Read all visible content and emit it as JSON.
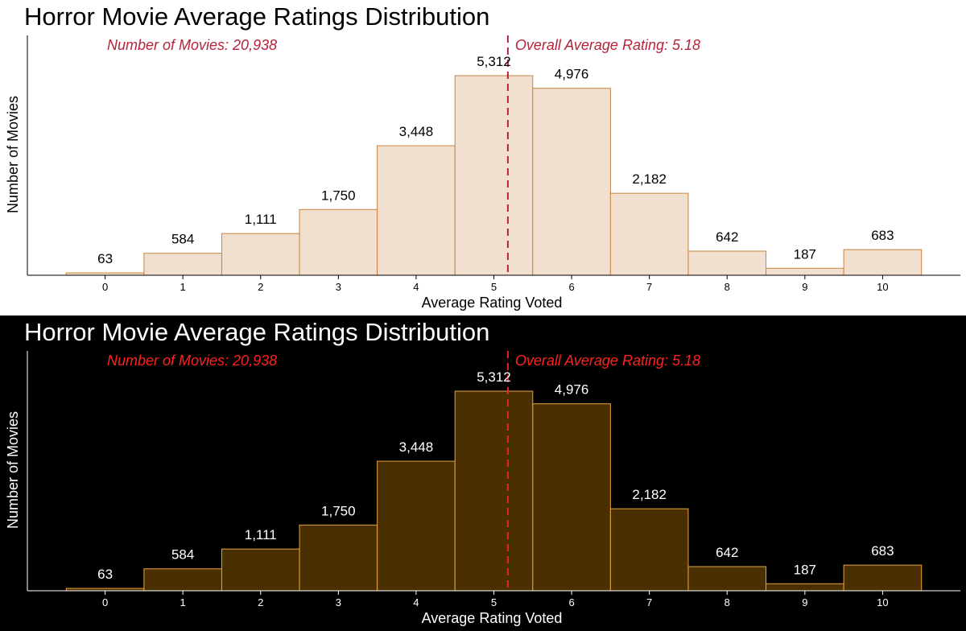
{
  "chart_data": [
    {
      "type": "bar",
      "theme": "light",
      "title": "Horror Movie Average Ratings Distribution",
      "xlabel": "Average Rating Voted",
      "ylabel": "Number of Movies",
      "categories": [
        "0",
        "1",
        "2",
        "3",
        "4",
        "5",
        "6",
        "7",
        "8",
        "9",
        "10"
      ],
      "x": [
        0,
        1,
        2,
        3,
        4,
        5,
        6,
        7,
        8,
        9,
        10
      ],
      "values": [
        63,
        584,
        1111,
        1750,
        3448,
        5312,
        4976,
        2182,
        642,
        187,
        683
      ],
      "value_labels": [
        "63",
        "584",
        "1,111",
        "1,750",
        "3,448",
        "5,312",
        "4,976",
        "2,182",
        "642",
        "187",
        "683"
      ],
      "xlim": [
        -1,
        11
      ],
      "ylim": [
        0,
        5312
      ],
      "average_line": 5.18,
      "annotations": {
        "count": "Number of Movies: 20,938",
        "average": "Overall Average Rating: 5.18"
      },
      "grid": false,
      "colors": {
        "background": "#ffffff",
        "bar_fill": "#f1e0cf",
        "bar_stroke": "#c8843c",
        "text": "#000000",
        "axis": "#000000",
        "annotation": "#b5243a",
        "average_line": "#b5243a"
      }
    },
    {
      "type": "bar",
      "theme": "dark",
      "title": "Horror Movie Average Ratings Distribution",
      "xlabel": "Average Rating Voted",
      "ylabel": "Number of Movies",
      "categories": [
        "0",
        "1",
        "2",
        "3",
        "4",
        "5",
        "6",
        "7",
        "8",
        "9",
        "10"
      ],
      "x": [
        0,
        1,
        2,
        3,
        4,
        5,
        6,
        7,
        8,
        9,
        10
      ],
      "values": [
        63,
        584,
        1111,
        1750,
        3448,
        5312,
        4976,
        2182,
        642,
        187,
        683
      ],
      "value_labels": [
        "63",
        "584",
        "1,111",
        "1,750",
        "3,448",
        "5,312",
        "4,976",
        "2,182",
        "642",
        "187",
        "683"
      ],
      "xlim": [
        -1,
        11
      ],
      "ylim": [
        0,
        5312
      ],
      "average_line": 5.18,
      "annotations": {
        "count": "Number of Movies: 20,938",
        "average": "Overall Average Rating: 5.18"
      },
      "grid": false,
      "colors": {
        "background": "#000000",
        "bar_fill": "#4a3000",
        "bar_stroke": "#e8a33a",
        "text": "#ffffff",
        "axis": "#ffffff",
        "annotation": "#ff2020",
        "average_line": "#e8232a"
      }
    }
  ]
}
